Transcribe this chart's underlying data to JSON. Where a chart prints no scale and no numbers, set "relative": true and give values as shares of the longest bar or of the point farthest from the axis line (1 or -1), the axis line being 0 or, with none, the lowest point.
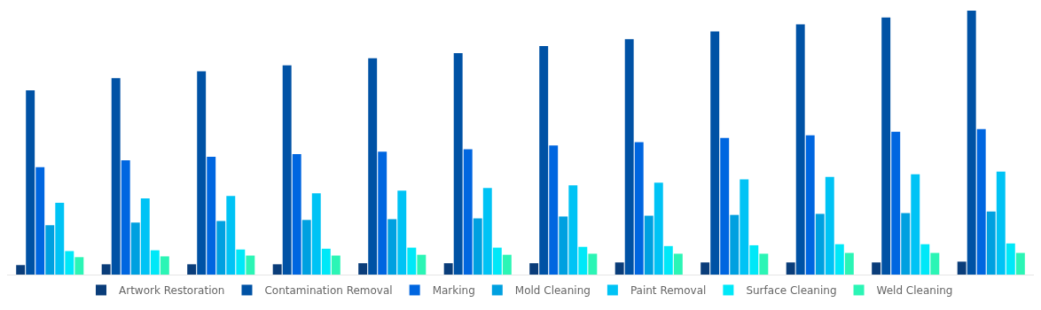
{
  "chart_data": {
    "type": "bar",
    "relative": true,
    "categories": [
      null,
      null,
      null,
      null,
      null,
      null,
      null,
      null,
      null,
      null,
      null,
      null
    ],
    "legend": "bottom",
    "series": [
      {
        "name": "Artwork Restoration",
        "color": "#0a3d7a",
        "values": [
          0.036,
          0.039,
          0.039,
          0.039,
          0.043,
          0.043,
          0.043,
          0.046,
          0.046,
          0.046,
          0.046,
          0.049
        ]
      },
      {
        "name": "Contamination Removal",
        "color": "#0052a5",
        "values": [
          0.698,
          0.744,
          0.77,
          0.793,
          0.82,
          0.839,
          0.866,
          0.892,
          0.921,
          0.948,
          0.974,
          1
        ]
      },
      {
        "name": "Marking",
        "color": "#0066e0",
        "values": [
          0.407,
          0.433,
          0.446,
          0.456,
          0.466,
          0.475,
          0.489,
          0.502,
          0.518,
          0.528,
          0.541,
          0.551
        ]
      },
      {
        "name": "Mold Cleaning",
        "color": "#00a0e0",
        "values": [
          0.187,
          0.197,
          0.203,
          0.207,
          0.21,
          0.213,
          0.22,
          0.223,
          0.226,
          0.23,
          0.233,
          0.239
        ]
      },
      {
        "name": "Paint Removal",
        "color": "#00c3f5",
        "values": [
          0.272,
          0.289,
          0.298,
          0.308,
          0.318,
          0.328,
          0.338,
          0.348,
          0.361,
          0.37,
          0.38,
          0.39
        ]
      },
      {
        "name": "Surface Cleaning",
        "color": "#00e8f8",
        "values": [
          0.089,
          0.092,
          0.095,
          0.098,
          0.102,
          0.102,
          0.105,
          0.108,
          0.111,
          0.115,
          0.115,
          0.118
        ]
      },
      {
        "name": "Weld Cleaning",
        "color": "#2bf5b5",
        "values": [
          0.066,
          0.069,
          0.072,
          0.072,
          0.075,
          0.075,
          0.079,
          0.079,
          0.079,
          0.082,
          0.082,
          0.082
        ]
      }
    ]
  }
}
